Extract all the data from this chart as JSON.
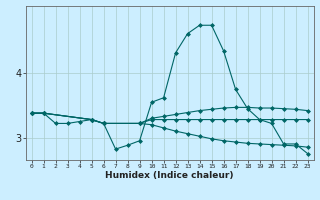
{
  "xlabel": "Humidex (Indice chaleur)",
  "bg_color": "#cceeff",
  "line_color": "#006666",
  "xlim": [
    -0.5,
    23.5
  ],
  "ylim": [
    2.65,
    5.05
  ],
  "yticks": [
    3,
    4
  ],
  "xticks": [
    0,
    1,
    2,
    3,
    4,
    5,
    6,
    7,
    8,
    9,
    10,
    11,
    12,
    13,
    14,
    15,
    16,
    17,
    18,
    19,
    20,
    21,
    22,
    23
  ],
  "lines": [
    {
      "x": [
        0,
        1,
        2,
        3,
        4,
        5,
        6,
        7,
        8,
        9,
        10,
        11,
        12,
        13,
        14,
        15,
        16,
        17,
        18,
        19,
        20,
        21,
        22,
        23
      ],
      "y": [
        3.38,
        3.38,
        3.22,
        3.22,
        3.25,
        3.28,
        3.22,
        2.82,
        2.88,
        2.95,
        3.55,
        3.62,
        4.32,
        4.62,
        4.75,
        4.75,
        4.35,
        3.75,
        3.45,
        3.28,
        3.22,
        2.9,
        2.9,
        2.75
      ]
    },
    {
      "x": [
        0,
        1,
        5,
        6,
        9,
        10,
        11,
        12,
        13,
        14,
        15,
        16,
        17,
        18,
        19,
        20,
        21,
        22,
        23
      ],
      "y": [
        3.38,
        3.38,
        3.28,
        3.22,
        3.22,
        3.3,
        3.33,
        3.36,
        3.39,
        3.42,
        3.44,
        3.46,
        3.47,
        3.47,
        3.46,
        3.46,
        3.45,
        3.44,
        3.42
      ]
    },
    {
      "x": [
        0,
        1,
        5,
        6,
        9,
        10,
        11,
        12,
        13,
        14,
        15,
        16,
        17,
        18,
        19,
        20,
        21,
        22,
        23
      ],
      "y": [
        3.38,
        3.38,
        3.28,
        3.22,
        3.22,
        3.2,
        3.15,
        3.1,
        3.06,
        3.02,
        2.98,
        2.95,
        2.93,
        2.91,
        2.9,
        2.89,
        2.88,
        2.87,
        2.85
      ]
    },
    {
      "x": [
        0,
        1,
        5,
        6,
        9,
        10,
        11,
        12,
        13,
        14,
        15,
        16,
        17,
        18,
        19,
        20,
        21,
        22,
        23
      ],
      "y": [
        3.38,
        3.38,
        3.28,
        3.22,
        3.22,
        3.28,
        3.28,
        3.28,
        3.28,
        3.28,
        3.28,
        3.28,
        3.28,
        3.28,
        3.28,
        3.28,
        3.28,
        3.28,
        3.28
      ]
    }
  ]
}
